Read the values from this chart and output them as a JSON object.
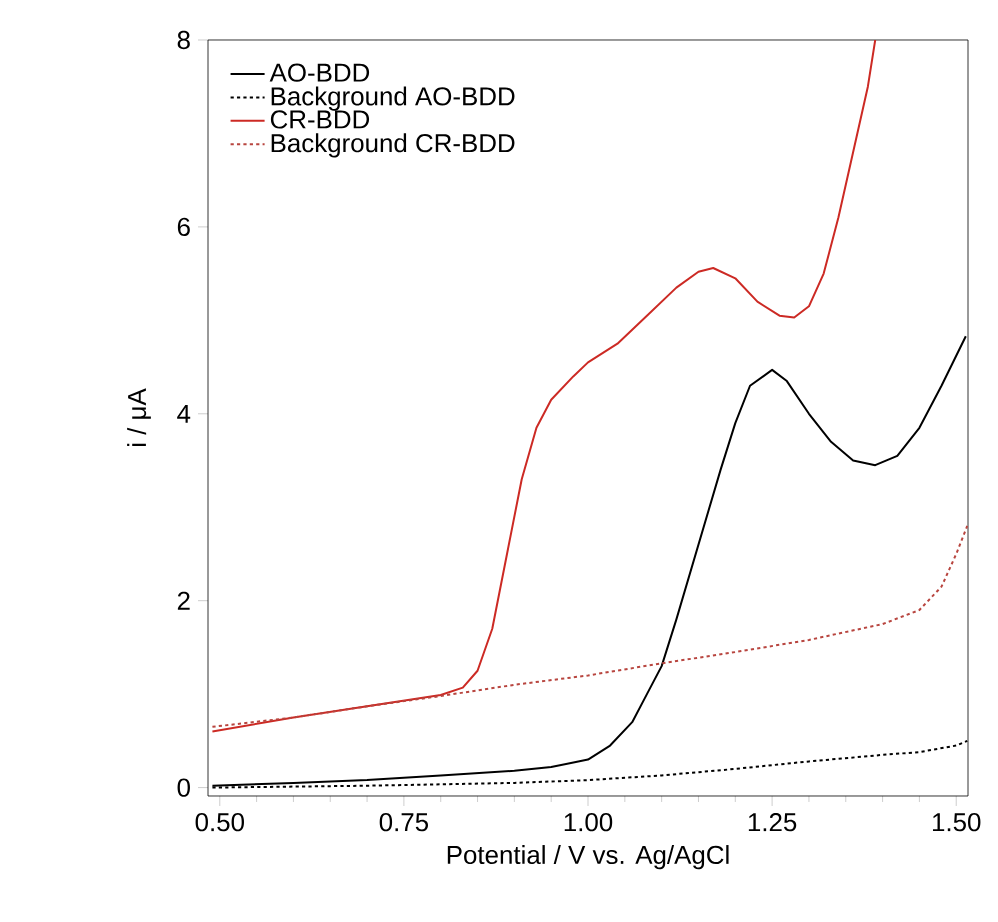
{
  "chart_data": {
    "type": "line",
    "xlabel": "Potential / V vs. Ag/AgCl",
    "ylabel": "i / μA",
    "xlim": [
      0.484,
      1.516
    ],
    "ylim": [
      -0.09,
      8
    ],
    "xticks": [
      {
        "value": 0.5,
        "label": "0.50"
      },
      {
        "value": 0.75,
        "label": "0.75"
      },
      {
        "value": 1.0,
        "label": "1.00"
      },
      {
        "value": 1.25,
        "label": "1.25"
      },
      {
        "value": 1.5,
        "label": "1.50"
      }
    ],
    "yticks": [
      0,
      2,
      4,
      6,
      8
    ],
    "legend": "top left",
    "grid": false,
    "marker": "none",
    "series": [
      {
        "name": "AO-BDD",
        "color": "#000000",
        "line_style": "solid",
        "x": [
          0.49,
          0.6,
          0.7,
          0.8,
          0.9,
          0.95,
          1.0,
          1.03,
          1.06,
          1.08,
          1.1,
          1.12,
          1.15,
          1.18,
          1.2,
          1.22,
          1.25,
          1.27,
          1.3,
          1.33,
          1.36,
          1.39,
          1.42,
          1.45,
          1.48,
          1.513
        ],
        "values": [
          0.02,
          0.05,
          0.08,
          0.13,
          0.18,
          0.22,
          0.3,
          0.45,
          0.7,
          1.0,
          1.3,
          1.8,
          2.6,
          3.4,
          3.9,
          4.3,
          4.47,
          4.35,
          4.0,
          3.7,
          3.5,
          3.45,
          3.55,
          3.85,
          4.3,
          4.83
        ]
      },
      {
        "name": "Background AO-BDD",
        "color": "#000000",
        "line_style": "dotted",
        "x": [
          0.49,
          0.7,
          0.9,
          1.0,
          1.1,
          1.2,
          1.3,
          1.4,
          1.45,
          1.5,
          1.515
        ],
        "values": [
          0.0,
          0.02,
          0.05,
          0.08,
          0.13,
          0.2,
          0.28,
          0.35,
          0.38,
          0.45,
          0.5
        ]
      },
      {
        "name": "CR-BDD",
        "color": "#cc2a24",
        "line_style": "solid",
        "x": [
          0.49,
          0.6,
          0.7,
          0.8,
          0.83,
          0.85,
          0.87,
          0.89,
          0.91,
          0.93,
          0.95,
          0.98,
          1.0,
          1.04,
          1.08,
          1.12,
          1.15,
          1.17,
          1.2,
          1.23,
          1.26,
          1.28,
          1.3,
          1.32,
          1.34,
          1.36,
          1.38,
          1.39
        ],
        "values": [
          0.6,
          0.75,
          0.87,
          0.99,
          1.07,
          1.25,
          1.7,
          2.5,
          3.3,
          3.85,
          4.15,
          4.4,
          4.55,
          4.75,
          5.05,
          5.35,
          5.52,
          5.56,
          5.45,
          5.2,
          5.05,
          5.03,
          5.15,
          5.5,
          6.1,
          6.8,
          7.5,
          8.0
        ]
      },
      {
        "name": "Background CR-BDD",
        "color": "#b8453f",
        "line_style": "dotted",
        "x": [
          0.49,
          0.6,
          0.7,
          0.8,
          0.9,
          1.0,
          1.1,
          1.2,
          1.3,
          1.4,
          1.45,
          1.48,
          1.5,
          1.515
        ],
        "values": [
          0.65,
          0.75,
          0.87,
          0.98,
          1.1,
          1.2,
          1.33,
          1.45,
          1.58,
          1.75,
          1.9,
          2.15,
          2.5,
          2.8
        ]
      }
    ]
  }
}
